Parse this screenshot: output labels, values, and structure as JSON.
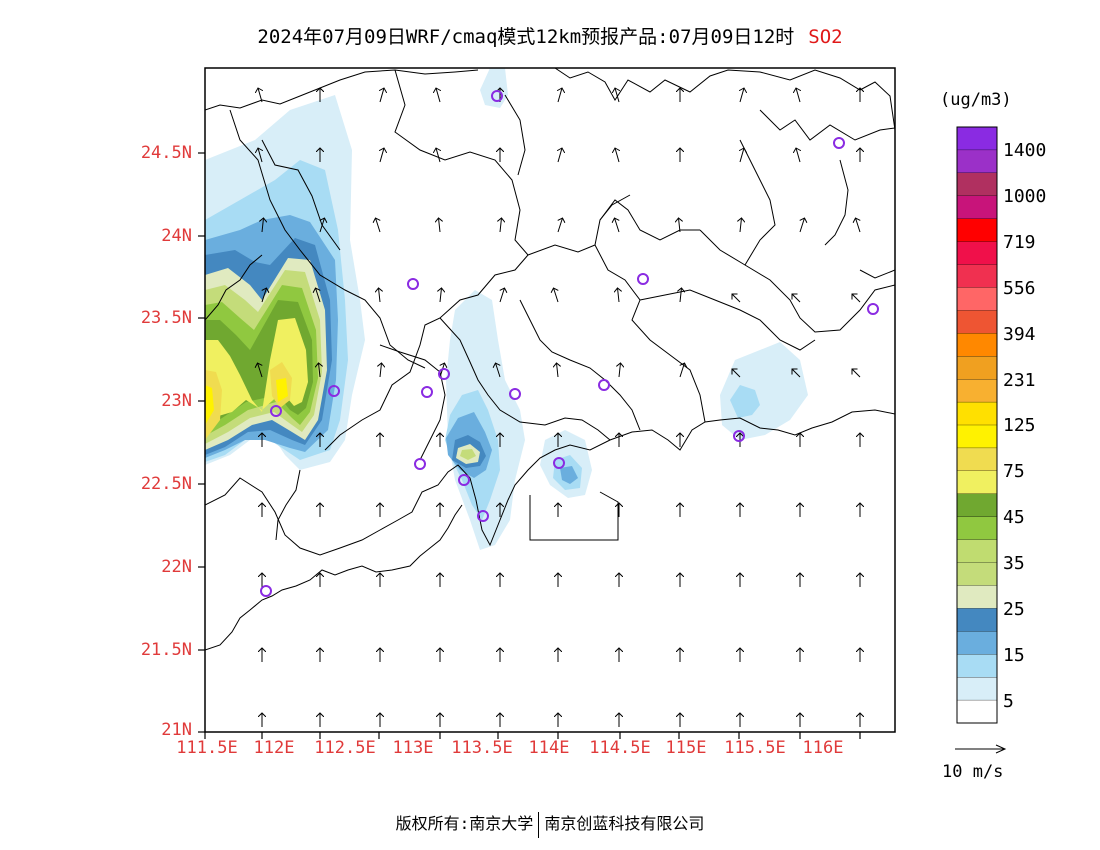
{
  "title": {
    "text": "2024年07月09日WRF/cmaq模式12km预报产品:07月09日12时",
    "product": "SO2"
  },
  "axes": {
    "lat_labels": [
      "24.5N",
      "24N",
      "23.5N",
      "23N",
      "22.5N",
      "22N",
      "21.5N",
      "21N"
    ],
    "lon_labels": [
      "111.5E",
      "112E",
      "112.5E",
      "113E",
      "113.5E",
      "114E",
      "114.5E",
      "115E",
      "115.5E",
      "116E"
    ]
  },
  "colorbar": {
    "unit": "(ug/m3)",
    "labels": [
      "1400",
      "1000",
      "719",
      "556",
      "394",
      "231",
      "125",
      "75",
      "45",
      "35",
      "25",
      "15",
      "5"
    ],
    "colors": [
      "#8a2be2",
      "#9b30c8",
      "#b03060",
      "#c8147a",
      "#ff0000",
      "#f0104a",
      "#f03050",
      "#ff6666",
      "#ee5533",
      "#ff8800",
      "#f0a020",
      "#f8b030",
      "#ffe000",
      "#fff200",
      "#f0dc50",
      "#f0f060",
      "#70a830",
      "#90c840",
      "#c0dc70",
      "#c4dc7a",
      "#e0eac0",
      "#4488c0",
      "#6aaede",
      "#a8dcf4",
      "#d8eef8",
      "#ffffff"
    ]
  },
  "wind_reference": {
    "label": "10 m/s"
  },
  "footer": {
    "left": "版权所有:南京大学",
    "right": "南京创蓝科技有限公司"
  },
  "colors": {
    "axis_label": "#e03a3a",
    "product_label": "#e01818",
    "station_marker": "#8a2be2"
  },
  "icons": [
    "wind-vector-icon",
    "station-marker-icon"
  ]
}
